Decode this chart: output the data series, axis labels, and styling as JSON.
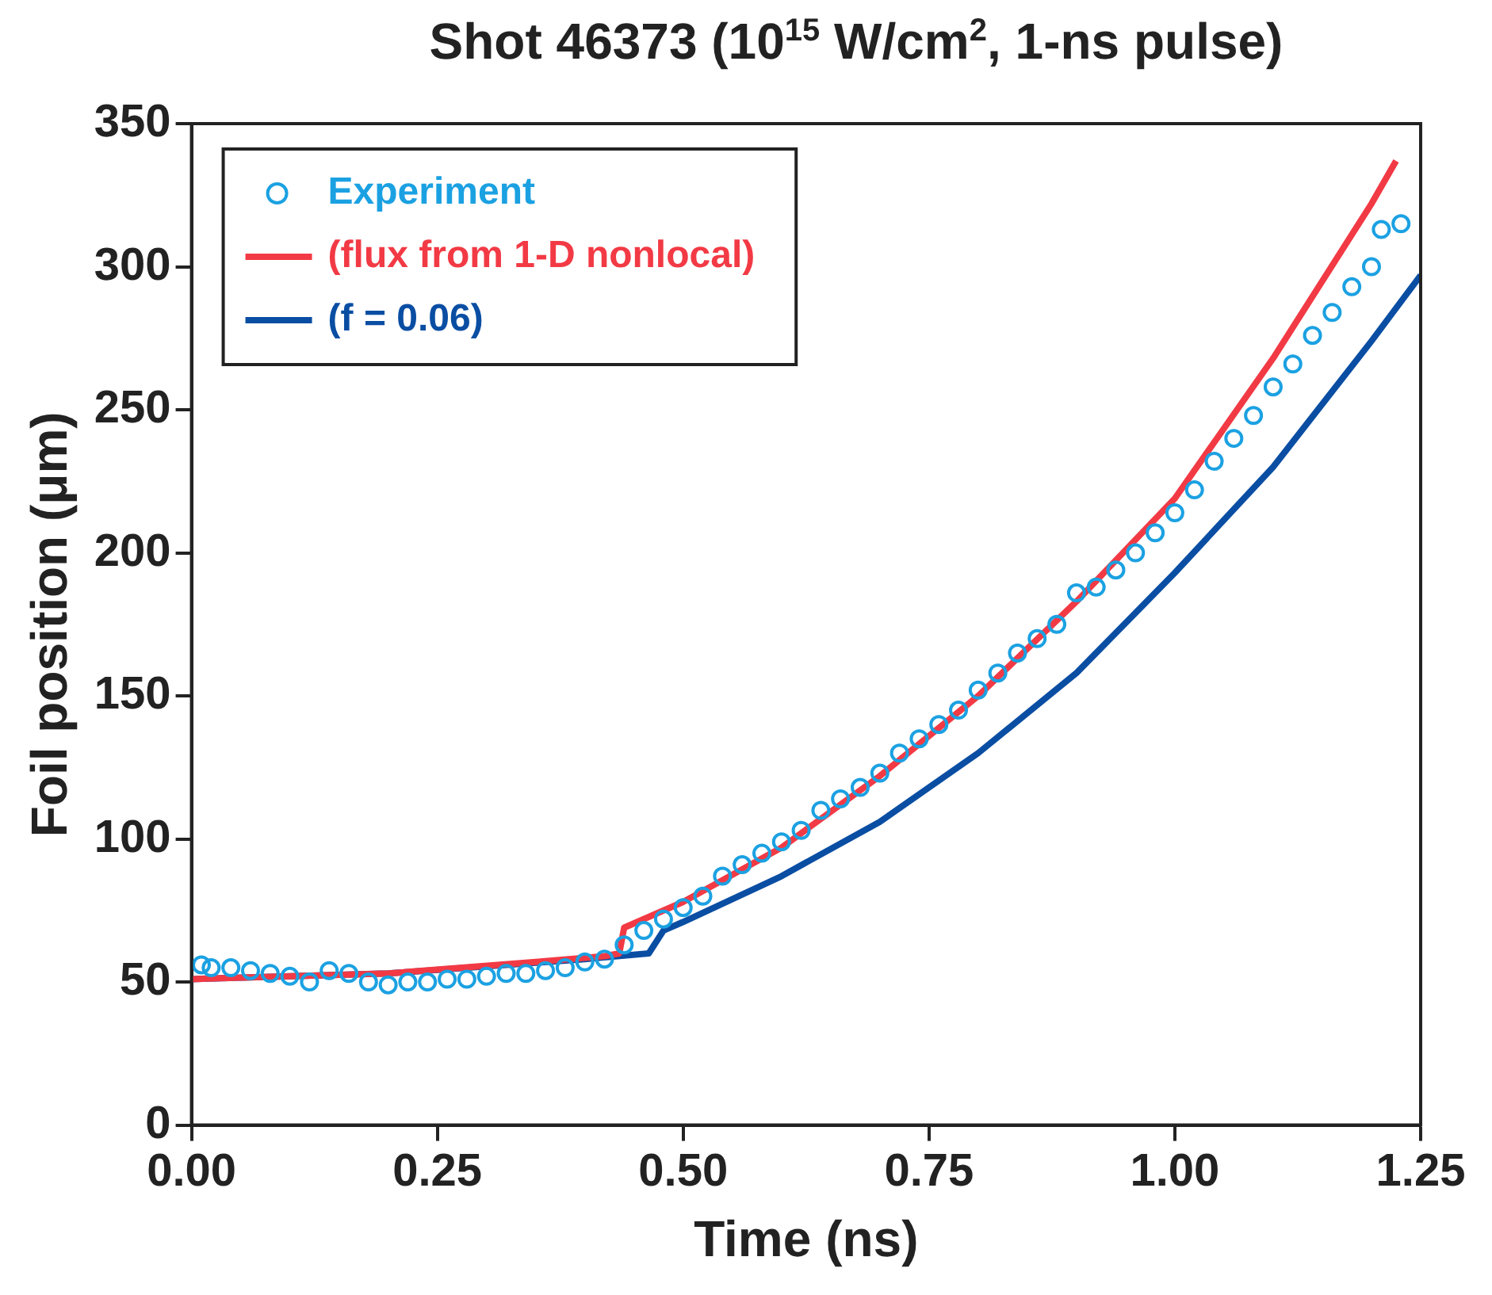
{
  "chart_data": {
    "type": "scatter",
    "title": "Shot 46373 (10$^{15}$ W/cm$^{2}$, 1-ns pulse)",
    "xlabel": "Time (ns)",
    "ylabel": "Foil position (μm)",
    "xlim": [
      0,
      1.25
    ],
    "xticks": [
      {
        "value": 0,
        "label": "0.00"
      },
      {
        "value": 0.25,
        "label": "0.25"
      },
      {
        "value": 0.5,
        "label": "0.50"
      },
      {
        "value": 0.75,
        "label": "0.75"
      },
      {
        "value": 1,
        "label": "1.00"
      },
      {
        "value": 1.25,
        "label": "1.25"
      }
    ],
    "ylim": [
      0,
      350
    ],
    "yticks": [
      0,
      50,
      100,
      150,
      200,
      250,
      300,
      350
    ],
    "grid": false,
    "legend": "top left",
    "series": [
      {
        "name": "Experiment",
        "marker": "circle",
        "color": "#1ba1e2",
        "x": [
          0.01,
          0.02,
          0.04,
          0.06,
          0.08,
          0.1,
          0.12,
          0.14,
          0.16,
          0.18,
          0.2,
          0.22,
          0.24,
          0.26,
          0.28,
          0.3,
          0.32,
          0.34,
          0.36,
          0.38,
          0.4,
          0.42,
          0.44,
          0.46,
          0.48,
          0.5,
          0.52,
          0.54,
          0.56,
          0.58,
          0.6,
          0.62,
          0.64,
          0.66,
          0.68,
          0.7,
          0.72,
          0.74,
          0.76,
          0.78,
          0.8,
          0.82,
          0.84,
          0.86,
          0.88,
          0.9,
          0.92,
          0.94,
          0.96,
          0.98,
          1,
          1.02,
          1.04,
          1.06,
          1.08,
          1.1,
          1.12,
          1.14,
          1.16,
          1.18,
          1.2,
          1.21,
          1.23
        ],
        "values": [
          56,
          55,
          55,
          54,
          53,
          52,
          50,
          54,
          53,
          50,
          49,
          50,
          50,
          51,
          51,
          52,
          53,
          53,
          54,
          55,
          57,
          58,
          63,
          68,
          72,
          76,
          80,
          87,
          91,
          95,
          99,
          103,
          110,
          114,
          118,
          123,
          130,
          135,
          140,
          145,
          152,
          158,
          165,
          170,
          175,
          186,
          188,
          194,
          200,
          207,
          214,
          222,
          232,
          240,
          248,
          258,
          266,
          276,
          284,
          293,
          300,
          313,
          315
        ]
      },
      {
        "name": "(flux from 1-D nonlocal)",
        "type": "line",
        "marker": "none",
        "color": "#f23a45",
        "x": [
          0,
          0.2,
          0.35,
          0.42,
          0.435,
          0.44,
          0.5,
          0.6,
          0.7,
          0.8,
          0.9,
          1,
          1.1,
          1.2,
          1.225
        ],
        "values": [
          51,
          53,
          57,
          59,
          60,
          69,
          78,
          97,
          122,
          150,
          183,
          219,
          268,
          322,
          337
        ]
      },
      {
        "name": "(f = 0.06)",
        "type": "line",
        "marker": "none",
        "color": "#0a4ea3",
        "x": [
          0,
          0.2,
          0.4,
          0.465,
          0.48,
          0.5,
          0.6,
          0.7,
          0.8,
          0.9,
          1,
          1.1,
          1.2,
          1.25
        ],
        "values": [
          51,
          53,
          58,
          60,
          68,
          71,
          87,
          106,
          130,
          158,
          193,
          230,
          274,
          297
        ]
      }
    ]
  }
}
